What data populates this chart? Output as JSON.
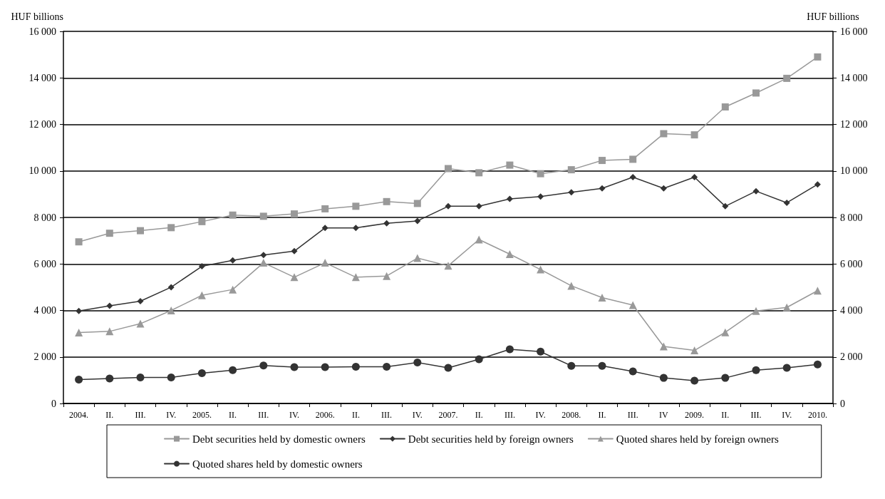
{
  "chart_data": {
    "type": "line",
    "ylabel": "HUF billions",
    "y2label": "HUF billions",
    "categories": [
      "2004.",
      "II.",
      "III.",
      "IV.",
      "2005.",
      "II.",
      "III.",
      "IV.",
      "2006.",
      "II.",
      "III.",
      "IV.",
      "2007.",
      "II.",
      "III.",
      "IV.",
      "2008.",
      "II.",
      "III.",
      "IV",
      "2009.",
      "II.",
      "III.",
      "IV.",
      "2010."
    ],
    "series": [
      {
        "name": "Debt securities held by domestic owners",
        "color": "#999999",
        "marker": "square",
        "values": [
          6950,
          7320,
          7430,
          7560,
          7820,
          8100,
          8050,
          8150,
          8370,
          8480,
          8680,
          8600,
          10100,
          9920,
          10250,
          9880,
          10050,
          10450,
          10500,
          11600,
          11550,
          12750,
          13350,
          13980,
          14900
        ]
      },
      {
        "name": "Debt securities held by foreign owners",
        "color": "#333333",
        "marker": "diamond",
        "values": [
          3980,
          4200,
          4400,
          5000,
          5900,
          6150,
          6380,
          6550,
          7550,
          7550,
          7750,
          7850,
          8480,
          8480,
          8800,
          8900,
          9080,
          9250,
          9730,
          9250,
          9730,
          8480,
          9130,
          8630,
          9420
        ]
      },
      {
        "name": "Quoted shares held by foreign owners",
        "color": "#999999",
        "marker": "triangle",
        "values": [
          3050,
          3100,
          3430,
          4000,
          4650,
          4900,
          6050,
          5430,
          6050,
          5430,
          5480,
          6250,
          5920,
          7050,
          6420,
          5760,
          5060,
          4550,
          4230,
          2450,
          2280,
          3060,
          3980,
          4130,
          4850
        ]
      },
      {
        "name": "Quoted shares held by domestic owners",
        "color": "#333333",
        "marker": "circle",
        "values": [
          1030,
          1070,
          1120,
          1120,
          1300,
          1430,
          1630,
          1560,
          1560,
          1580,
          1580,
          1760,
          1530,
          1900,
          2330,
          2230,
          1620,
          1620,
          1380,
          1100,
          980,
          1100,
          1430,
          1530,
          1680
        ]
      }
    ],
    "ylim": [
      0,
      16000
    ],
    "yticks": [
      0,
      {
        "value": 2000,
        "label": "2 000"
      },
      {
        "value": 4000,
        "label": "4 000"
      },
      {
        "value": 6000,
        "label": "6 000"
      },
      {
        "value": 8000,
        "label": "8 000"
      },
      {
        "value": 10000,
        "label": "10 000"
      },
      {
        "value": 12000,
        "label": "12 000"
      },
      {
        "value": 14000,
        "label": "14 000"
      },
      {
        "value": 16000,
        "label": "16 000"
      }
    ],
    "y2lim": [
      0,
      16000
    ],
    "y2ticks": [
      0,
      {
        "value": 2000,
        "label": "2 000"
      },
      {
        "value": 4000,
        "label": "4 000"
      },
      {
        "value": 6000,
        "label": "6 000"
      },
      {
        "value": 8000,
        "label": "8 000"
      },
      {
        "value": 10000,
        "label": "10 000"
      },
      {
        "value": 12000,
        "label": "12 000"
      },
      {
        "value": 14000,
        "label": "14 000"
      },
      {
        "value": 16000,
        "label": "16 000"
      }
    ],
    "grid": "y",
    "legend": "bottom",
    "line_style": "solid"
  }
}
